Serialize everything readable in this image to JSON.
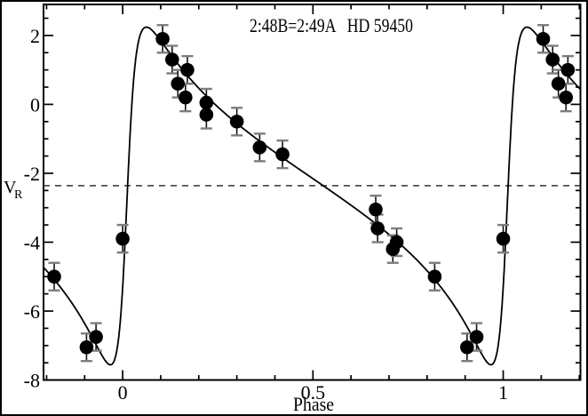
{
  "window": {
    "background": "#ffffff",
    "border_color": "#000000",
    "foreground": "#000000"
  },
  "chart_data": {
    "type": "scatter",
    "title": "2:48B=2:49A   HD 59450",
    "xlabel": "Phase",
    "ylabel": "V_R",
    "ylabel_main": "V",
    "ylabel_sub": "R",
    "xlim": [
      -0.208,
      1.203
    ],
    "ylim": [
      -8,
      2.9
    ],
    "grid": false,
    "legend": null,
    "x_major_ticks": [
      {
        "value": 0,
        "label": "0"
      },
      {
        "value": 0.5,
        "label": "0.5"
      },
      {
        "value": 1,
        "label": "1"
      }
    ],
    "x_minor_step": 0.1,
    "y_major_ticks": [
      {
        "value": 2,
        "label": "2"
      },
      {
        "value": 0,
        "label": "0"
      },
      {
        "value": -2,
        "label": "-2"
      },
      {
        "value": -4,
        "label": "-4"
      },
      {
        "value": -6,
        "label": "-6"
      },
      {
        "value": -8,
        "label": "-8"
      }
    ],
    "y_minor_step": 0.5,
    "systemic_velocity_line": {
      "value": -2.36,
      "style": "dashed"
    },
    "error_bar_half_length": 0.4,
    "phase_duplicates_shown": true,
    "point_color": "#000000",
    "curve_color": "#000000",
    "errorbar_cap_color": "#7d7d7d",
    "points": [
      [
        -0.18,
        -5.0
      ],
      [
        -0.095,
        -7.05
      ],
      [
        -0.07,
        -6.75
      ],
      [
        0.0,
        -3.9
      ],
      [
        0.105,
        1.9
      ],
      [
        0.13,
        1.3
      ],
      [
        0.145,
        0.6
      ],
      [
        0.165,
        0.2
      ],
      [
        0.17,
        1.0
      ],
      [
        0.22,
        0.05
      ],
      [
        0.22,
        -0.3
      ],
      [
        0.3,
        -0.5
      ],
      [
        0.36,
        -1.25
      ],
      [
        0.42,
        -1.45
      ],
      [
        0.665,
        -3.05
      ],
      [
        0.67,
        -3.6
      ],
      [
        0.71,
        -4.2
      ],
      [
        0.72,
        -4.0
      ],
      [
        0.82,
        -5.0
      ],
      [
        0.905,
        -7.05
      ],
      [
        0.93,
        -6.75
      ],
      [
        1.0,
        -3.9
      ],
      [
        1.105,
        1.9
      ],
      [
        1.13,
        1.3
      ],
      [
        1.145,
        0.6
      ],
      [
        1.165,
        0.2
      ],
      [
        1.17,
        1.0
      ]
    ],
    "model_curve": {
      "type": "keplerian_rv",
      "gamma": -2.36,
      "K": 4.9,
      "e": 0.7,
      "omega_deg": 265,
      "periastron_phase": 0.01
    }
  }
}
